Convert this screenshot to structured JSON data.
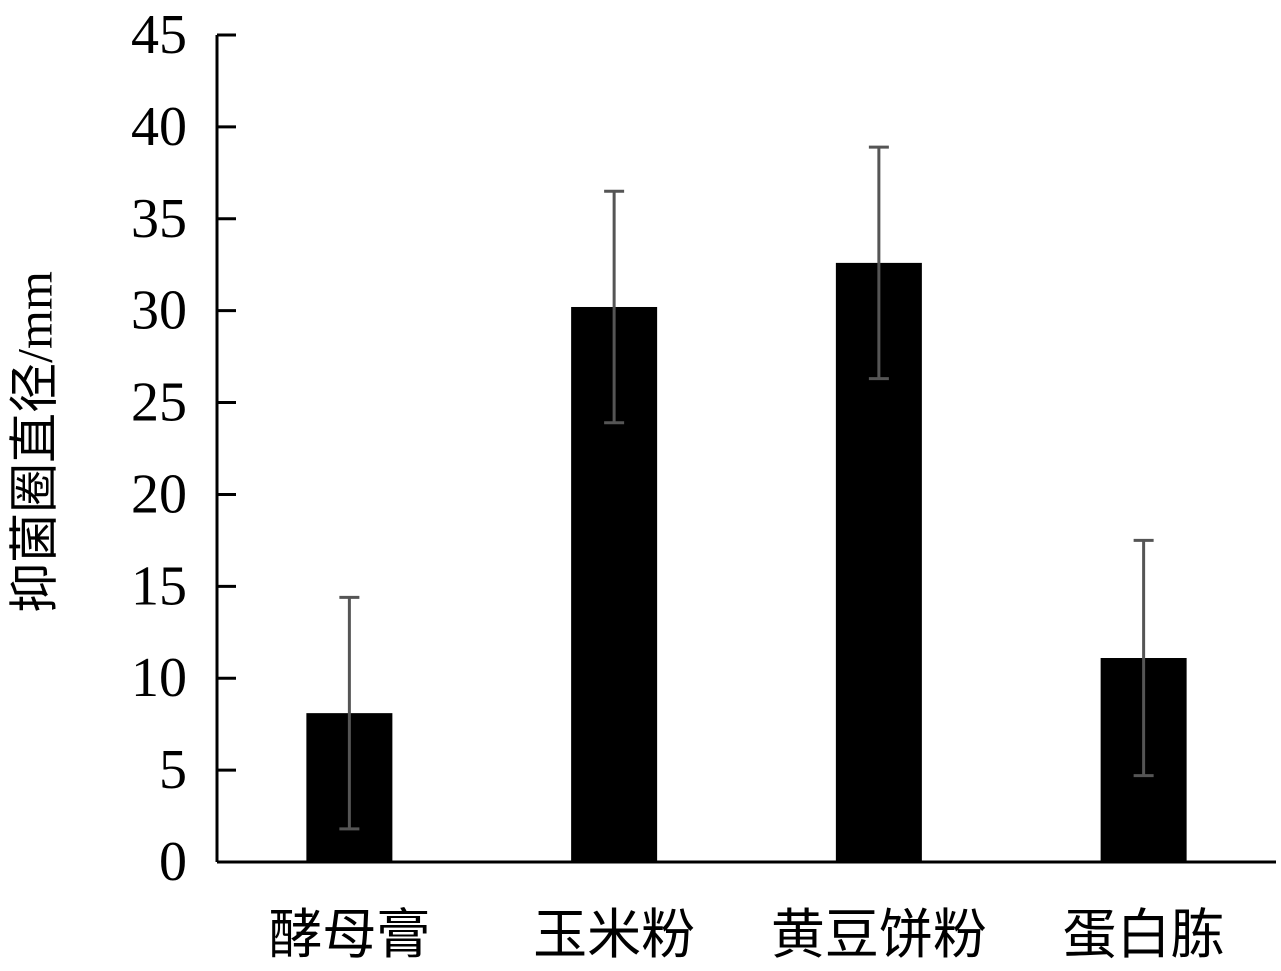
{
  "chart_data": {
    "type": "bar",
    "title": "",
    "xlabel": "",
    "ylabel": "抑菌圈直径/mm",
    "categories": [
      "酵母膏",
      "玉米粉",
      "黄豆饼粉",
      "蛋白胨"
    ],
    "series": [
      {
        "values": [
          8.1,
          30.2,
          32.6,
          11.1
        ],
        "error": [
          6.3,
          6.3,
          6.3,
          6.4
        ]
      }
    ],
    "ylim": [
      0,
      45
    ],
    "yticks": [
      0,
      5,
      10,
      15,
      20,
      25,
      30,
      35,
      40,
      45
    ],
    "grid": false,
    "legend": "none",
    "colors": {
      "bar": "#000000",
      "error_bar": "#555555",
      "axis": "#000000"
    }
  }
}
